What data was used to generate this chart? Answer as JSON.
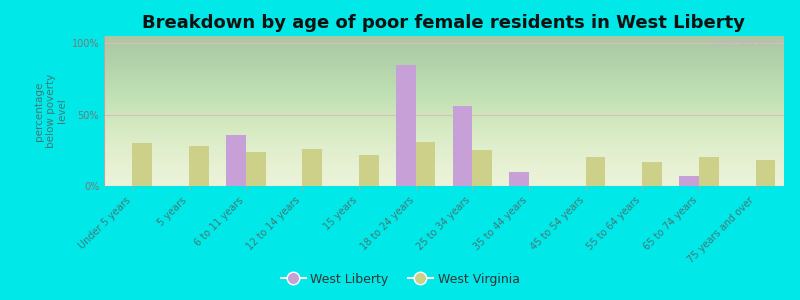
{
  "title": "Breakdown by age of poor female residents in West Liberty",
  "ylabel": "percentage\nbelow poverty\nlevel",
  "categories": [
    "Under 5 years",
    "5 years",
    "6 to 11 years",
    "12 to 14 years",
    "15 years",
    "18 to 24 years",
    "25 to 34 years",
    "35 to 44 years",
    "45 to 54 years",
    "55 to 64 years",
    "65 to 74 years",
    "75 years and over"
  ],
  "west_liberty": [
    0,
    0,
    36,
    0,
    0,
    85,
    56,
    10,
    0,
    0,
    7,
    0
  ],
  "west_virginia": [
    30,
    28,
    24,
    26,
    22,
    31,
    25,
    0,
    20,
    17,
    20,
    18
  ],
  "wl_color": "#c8a0d8",
  "wv_color": "#ccd088",
  "bg_color": "#00e8e8",
  "yticks": [
    0,
    50,
    100
  ],
  "ylim": [
    0,
    105
  ],
  "title_fontsize": 13,
  "ylabel_fontsize": 7.5,
  "tick_label_fontsize": 7,
  "xtick_color": "#447777",
  "ytick_color": "#777777",
  "bar_width": 0.35,
  "legend_wl": "West Liberty",
  "legend_wv": "West Virginia"
}
